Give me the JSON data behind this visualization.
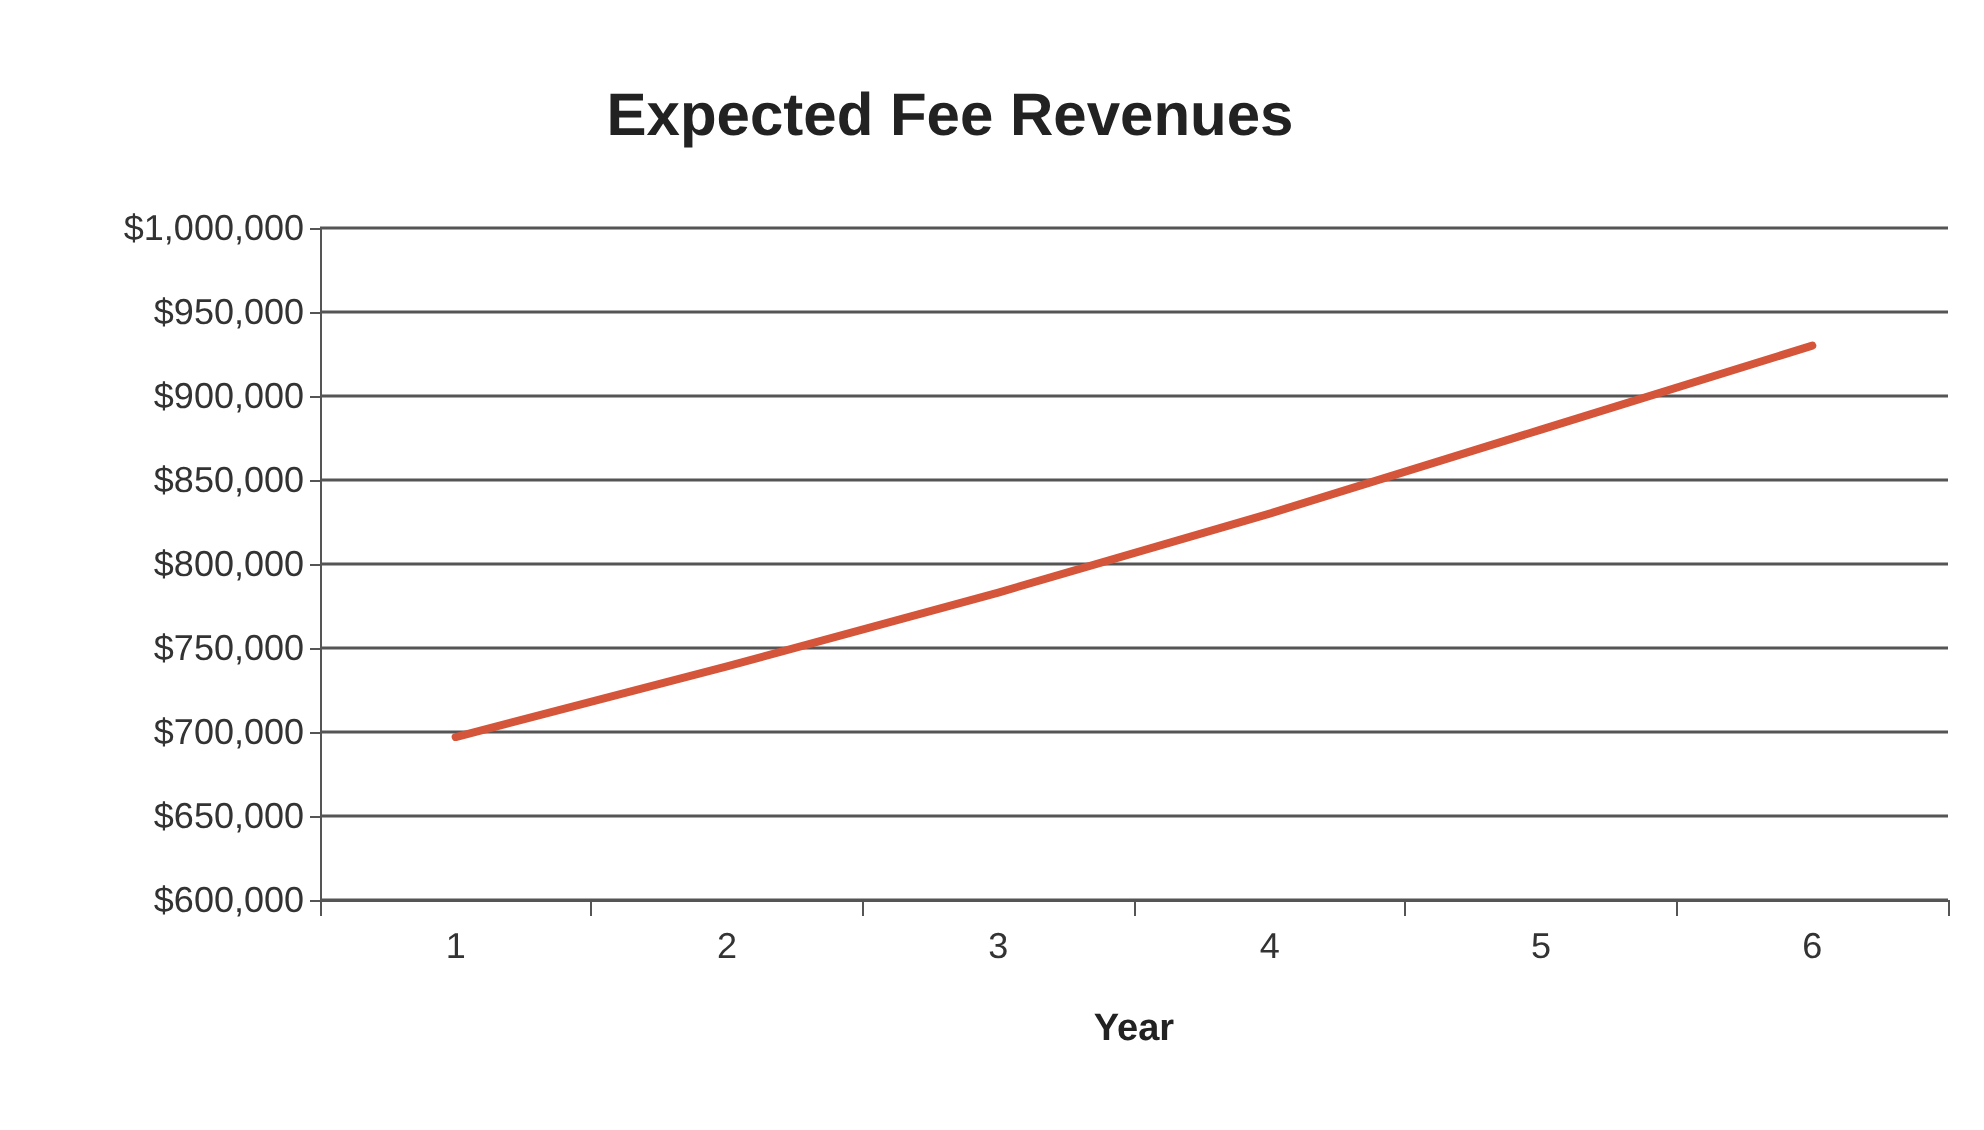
{
  "chart_data": {
    "type": "line",
    "title": "Expected Fee Revenues",
    "xlabel": "Year",
    "categories": [
      "1",
      "2",
      "3",
      "4",
      "5",
      "6"
    ],
    "series": [
      {
        "color": "#d4553a",
        "values": [
          697000,
          739000,
          783000,
          830000,
          880000,
          930000
        ]
      }
    ],
    "ylim": [
      600000,
      1000000
    ],
    "yticks": [
      {
        "value": 600000,
        "label": "$600,000"
      },
      {
        "value": 650000,
        "label": "$650,000"
      },
      {
        "value": 700000,
        "label": "$700,000"
      },
      {
        "value": 750000,
        "label": "$750,000"
      },
      {
        "value": 800000,
        "label": "$800,000"
      },
      {
        "value": 850000,
        "label": "$850,000"
      },
      {
        "value": 900000,
        "label": "$900,000"
      },
      {
        "value": 950000,
        "label": "$950,000"
      },
      {
        "value": 1000000,
        "label": "$1,000,000"
      }
    ],
    "grid": "y",
    "marker": "none",
    "line_style": "solid"
  }
}
